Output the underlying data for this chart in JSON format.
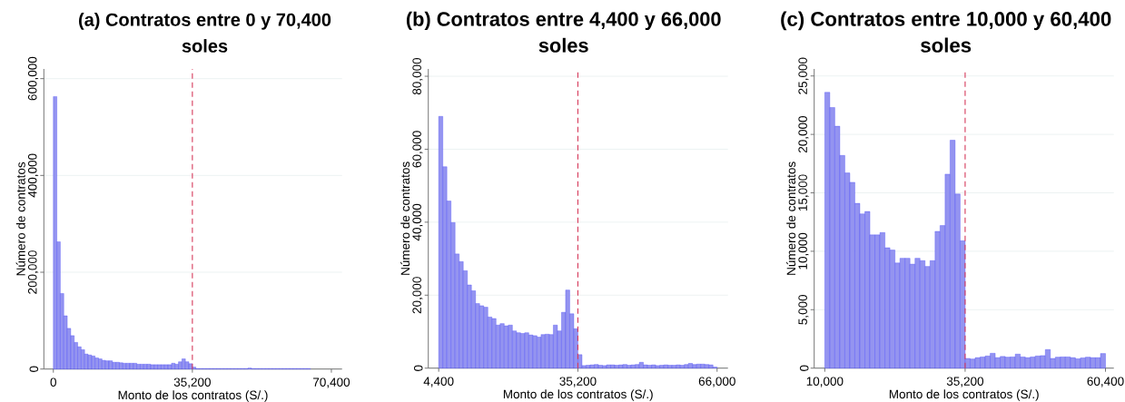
{
  "chart_data": [
    {
      "type": "histogram",
      "title": "(a) Contratos entre 0 y 70,400 soles",
      "xlabel": "Monto de los contratos (S/.)",
      "ylabel": "Número de contratos",
      "color": "#9494f0",
      "bins": [
        0,
        880,
        1760,
        2640,
        3520,
        4400,
        5280,
        6160,
        7040,
        7920,
        8800,
        9680,
        10560,
        11440,
        12320,
        13200,
        14080,
        14960,
        15840,
        16720,
        17600,
        18480,
        19360,
        20240,
        21120,
        22000,
        22880,
        23760,
        24640,
        25520,
        26400,
        27280,
        28160,
        29040,
        29920,
        30800,
        31680,
        32560,
        33440,
        34320,
        35200,
        36080,
        36960,
        37840,
        38720,
        39600,
        40480,
        41360,
        42240,
        43120,
        44000,
        44880,
        45760,
        46640,
        47520,
        48400,
        49280,
        50160,
        51040,
        51920,
        52800,
        53680,
        54560,
        55440,
        56320,
        57200,
        58080,
        58960,
        59840,
        60720,
        61600,
        62480,
        63360,
        64240,
        65120,
        66000,
        66880,
        67760,
        68640,
        69520,
        70400
      ],
      "values": [
        563000,
        263000,
        156000,
        110000,
        84000,
        69000,
        55000,
        46000,
        40000,
        31000,
        29000,
        27000,
        23000,
        21000,
        18000,
        17000,
        17000,
        14000,
        14000,
        13000,
        12000,
        12000,
        12000,
        12000,
        10000,
        10000,
        10000,
        10000,
        9000,
        9000,
        9000,
        9000,
        9000,
        9000,
        12000,
        10000,
        15000,
        21000,
        15000,
        11000,
        4000,
        1000,
        1000,
        1000,
        1000,
        1000,
        1000,
        1000,
        1000,
        1000,
        1000,
        1000,
        1000,
        1000,
        1000,
        1000,
        2000,
        1000,
        1000,
        1000,
        1000,
        1000,
        1000,
        1000,
        1000,
        1000,
        1000,
        1000,
        1000,
        1000,
        1000,
        1000,
        1000,
        1000,
        0,
        0,
        0,
        0,
        0,
        0
      ],
      "xlim": [
        -2400,
        73100
      ],
      "ylim": [
        0,
        620000
      ],
      "xticks": [
        0,
        {
          "value": 35200,
          "label": "35,200"
        },
        {
          "value": 70400,
          "label": "70,400"
        }
      ],
      "yticks": [
        0,
        {
          "value": 200000,
          "label": "200,000"
        },
        {
          "value": 400000,
          "label": "400,000"
        },
        {
          "value": 600000,
          "label": "600,000"
        }
      ],
      "grid": "y",
      "ref_lines": [
        {
          "axis": "x",
          "value": 35200,
          "color": "#d6395a",
          "line_style": "dashed"
        }
      ]
    },
    {
      "type": "histogram",
      "title": "(b) Contratos entre 4,400 y 66,000 soles",
      "xlabel": "Monto de los contratos (S/.)",
      "ylabel": "Número de contratos",
      "color": "#9494f0",
      "bins": [
        4400,
        5306,
        6212,
        7118,
        8024,
        8929,
        9835,
        10741,
        11647,
        12553,
        13459,
        14365,
        15271,
        16176,
        17082,
        17988,
        18894,
        19800,
        20706,
        21612,
        22518,
        23424,
        24329,
        25235,
        26141,
        27047,
        27953,
        28859,
        29765,
        30671,
        31576,
        32482,
        33388,
        34294,
        35200,
        36106,
        37012,
        37918,
        38824,
        39729,
        40635,
        41541,
        42447,
        43353,
        44259,
        45165,
        46071,
        46976,
        47882,
        48788,
        49694,
        50600,
        51506,
        52412,
        53318,
        54224,
        55129,
        56035,
        56941,
        57847,
        58753,
        59659,
        60565,
        61471,
        62376,
        63282,
        64188,
        65094,
        66000
      ],
      "values": [
        69000,
        55200,
        45800,
        39900,
        31300,
        29200,
        26700,
        22800,
        21200,
        17700,
        17100,
        16700,
        14000,
        13600,
        11800,
        12200,
        11600,
        11800,
        10200,
        9700,
        9500,
        9700,
        9100,
        8900,
        8500,
        9200,
        9300,
        9200,
        11800,
        10200,
        15300,
        21400,
        14900,
        10800,
        3700,
        700,
        800,
        900,
        1000,
        800,
        700,
        900,
        900,
        800,
        900,
        1000,
        800,
        900,
        1000,
        1600,
        900,
        800,
        900,
        700,
        800,
        900,
        800,
        800,
        900,
        800,
        1000,
        1300,
        1000,
        1100,
        1100,
        1000,
        900,
        300
      ],
      "xlim": [
        2100,
        68400
      ],
      "ylim": [
        0,
        82000
      ],
      "xticks": [
        {
          "value": 4400,
          "label": "4,400"
        },
        {
          "value": 35200,
          "label": "35,200"
        },
        {
          "value": 66000,
          "label": "66,000"
        }
      ],
      "yticks": [
        0,
        {
          "value": 20000,
          "label": "20,000"
        },
        {
          "value": 40000,
          "label": "40,000"
        },
        {
          "value": 60000,
          "label": "60,000"
        },
        {
          "value": 80000,
          "label": "80,000"
        }
      ],
      "grid": "y",
      "ref_lines": [
        {
          "axis": "x",
          "value": 35200,
          "color": "#d6395a",
          "line_style": "dashed"
        }
      ]
    },
    {
      "type": "histogram",
      "title": "(c) Contratos entre 10,000 y 60,400 soles",
      "xlabel": "Monto de los contratos (S/.)",
      "ylabel": "Número de contratos",
      "color": "#9494f0",
      "bins": [
        10000,
        10900,
        11800,
        12700,
        13600,
        14500,
        15400,
        16300,
        17200,
        18100,
        19000,
        19900,
        20800,
        21700,
        22600,
        23500,
        24400,
        25300,
        26200,
        27100,
        28000,
        28900,
        29800,
        30700,
        31600,
        32500,
        33400,
        34300,
        35200,
        36100,
        37000,
        37900,
        38800,
        39700,
        40600,
        41500,
        42400,
        43300,
        44200,
        45100,
        46000,
        46900,
        47800,
        48700,
        49600,
        50500,
        51400,
        52300,
        53200,
        54100,
        55000,
        55900,
        56800,
        57700,
        58600,
        59500,
        60400
      ],
      "values": [
        23600,
        22300,
        20700,
        18200,
        16700,
        15900,
        14100,
        13200,
        13400,
        11400,
        11400,
        11600,
        10300,
        10100,
        9000,
        9400,
        9400,
        8900,
        9400,
        9200,
        8700,
        9200,
        11700,
        12200,
        16600,
        19500,
        14900,
        10900,
        830,
        780,
        900,
        960,
        1040,
        1270,
        900,
        1000,
        940,
        960,
        1200,
        960,
        900,
        960,
        1040,
        1070,
        1590,
        830,
        940,
        960,
        960,
        900,
        800,
        880,
        940,
        900,
        900,
        1250
      ],
      "xlim": [
        8100,
        61900
      ],
      "ylim": [
        0,
        25600
      ],
      "xticks": [
        {
          "value": 10000,
          "label": "10,000"
        },
        {
          "value": 35200,
          "label": "35,200"
        },
        {
          "value": 60400,
          "label": "60,400"
        }
      ],
      "yticks": [
        0,
        {
          "value": 5000,
          "label": "5,000"
        },
        {
          "value": 10000,
          "label": "10,000"
        },
        {
          "value": 15000,
          "label": "15,000"
        },
        {
          "value": 20000,
          "label": "20,000"
        },
        {
          "value": 25000,
          "label": "25,000"
        }
      ],
      "grid": "y",
      "ref_lines": [
        {
          "axis": "x",
          "value": 35200,
          "color": "#d6395a",
          "line_style": "dashed"
        }
      ]
    }
  ]
}
